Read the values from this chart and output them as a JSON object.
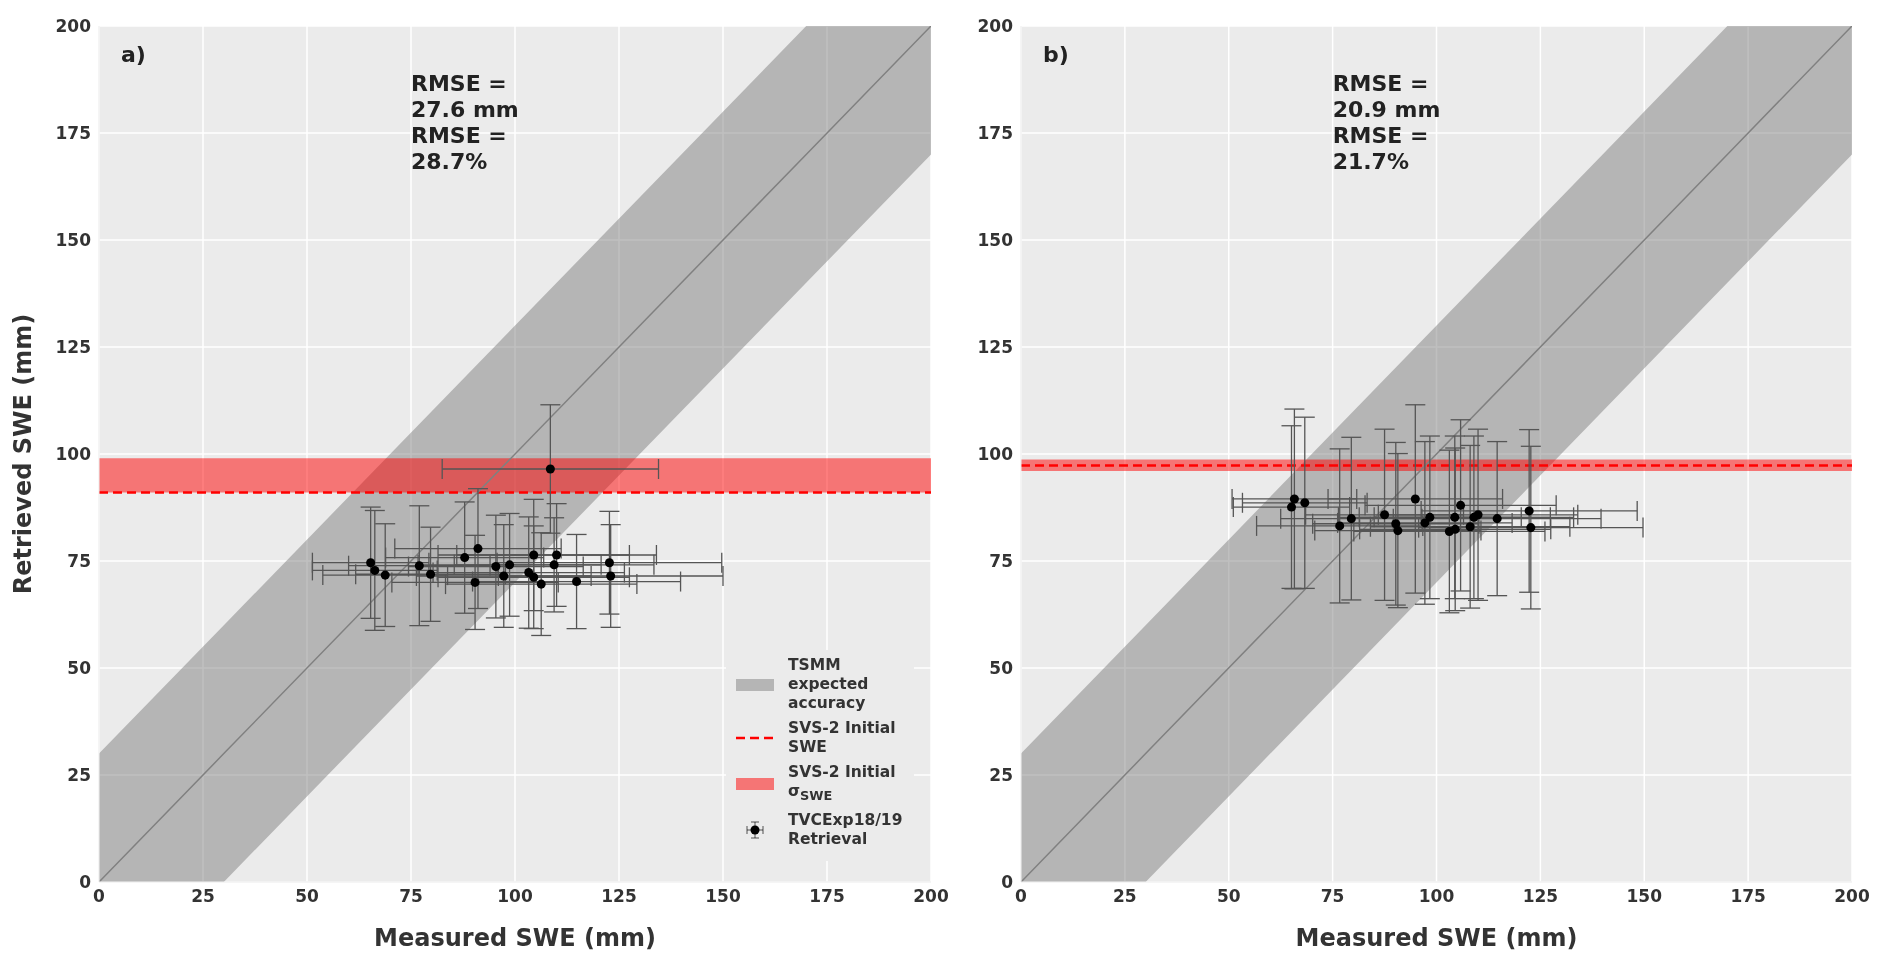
{
  "chart_data": [
    {
      "type": "scatter",
      "xlabel": "Measured SWE (mm)",
      "ylabel": "Retrieved SWE (mm)",
      "xlim": [
        0,
        200
      ],
      "ylim": [
        0,
        200
      ],
      "xticks": [
        0,
        25,
        50,
        75,
        100,
        125,
        150,
        175,
        200
      ],
      "yticks": [
        0,
        25,
        50,
        75,
        100,
        125,
        150,
        175,
        200
      ],
      "grid": true,
      "legend": "bottom right",
      "annotations": [
        "a)",
        "RMSE = 27.6 mm",
        "RMSE = 28.7%"
      ],
      "ref_lines": [
        {
          "axis": "y",
          "value": 91,
          "label": "SVS-2 Initial SWE",
          "color": "#ff0000",
          "line_style": "dashed"
        }
      ],
      "bands": [
        {
          "axis": "y",
          "from": 91,
          "to": 99,
          "label": "SVS-2 Initial σ$_{SWE}$",
          "color": "#ff0000"
        }
      ],
      "series": [
        {
          "type": "line",
          "name": "TSMM expected accuracy",
          "color": "#808080",
          "x": [
            0,
            30,
            170,
            200
          ],
          "values": [
            0,
            30,
            170,
            200
          ],
          "lower": [
            0,
            0,
            140,
            170
          ],
          "upper": [
            30,
            60,
            200,
            200
          ]
        },
        {
          "name": "TVCExp18/19 Retrieval",
          "marker": "circle",
          "color": "#000000",
          "x": [
            65.3,
            66.3,
            68.8,
            77.0,
            79.7,
            87.9,
            91.1,
            90.4,
            95.4,
            97.3,
            98.7,
            103.3,
            104.5,
            104.5,
            106.3,
            109.4,
            110.0,
            108.5,
            114.8,
            122.7,
            123.0
          ],
          "values": [
            74.6,
            72.8,
            71.7,
            73.9,
            71.9,
            75.8,
            77.9,
            70.0,
            73.7,
            71.5,
            74.1,
            72.3,
            71.2,
            76.4,
            69.6,
            74.1,
            76.4,
            96.5,
            70.2,
            74.6,
            71.5
          ],
          "errors": [
            13,
            14,
            12,
            14,
            11,
            13,
            14,
            11,
            12,
            12,
            12,
            13,
            12,
            13,
            12,
            11,
            12,
            15,
            11,
            12,
            12
          ],
          "xerrors": [
            14,
            15,
            15,
            17,
            18,
            19,
            20,
            20,
            21,
            21,
            22,
            23,
            23,
            23,
            23,
            24,
            24,
            26,
            25,
            27,
            27
          ]
        }
      ]
    },
    {
      "type": "scatter",
      "xlabel": "Measured SWE (mm)",
      "xlim": [
        0,
        200
      ],
      "ylim": [
        0,
        200
      ],
      "xticks": [
        0,
        25,
        50,
        75,
        100,
        125,
        150,
        175,
        200
      ],
      "yticks": [
        0,
        25,
        50,
        75,
        100,
        125,
        150,
        175,
        200
      ],
      "grid": true,
      "annotations": [
        "b)",
        "RMSE = 20.9 mm",
        "RMSE = 21.7%"
      ],
      "ref_lines": [
        {
          "axis": "y",
          "value": 97.3,
          "color": "#ff0000",
          "line_style": "dashed"
        }
      ],
      "bands": [
        {
          "axis": "y",
          "from": 96,
          "to": 98.7,
          "color": "#ff0000"
        }
      ],
      "series": [
        {
          "type": "line",
          "color": "#808080",
          "x": [
            0,
            30,
            170,
            200
          ],
          "values": [
            0,
            30,
            170,
            200
          ],
          "lower": [
            0,
            0,
            140,
            170
          ],
          "upper": [
            30,
            60,
            200,
            200
          ]
        },
        {
          "marker": "circle",
          "color": "#000000",
          "x": [
            65.8,
            65.1,
            68.3,
            76.7,
            79.5,
            87.5,
            90.2,
            90.7,
            94.9,
            97.2,
            98.4,
            103.1,
            104.4,
            104.5,
            105.8,
            108.1,
            109.0,
            110.0,
            114.6,
            122.3,
            122.7
          ],
          "values": [
            89.5,
            87.6,
            88.6,
            83.2,
            84.9,
            85.8,
            83.7,
            82.1,
            89.5,
            83.9,
            85.2,
            81.9,
            85.2,
            82.4,
            88.0,
            83.0,
            85.2,
            85.8,
            84.9,
            86.7,
            82.8
          ],
          "errors": [
            21,
            19,
            20,
            18,
            19,
            20,
            19,
            18,
            22,
            19,
            19,
            19,
            19,
            19,
            20,
            19,
            19,
            20,
            18,
            19,
            19
          ],
          "xerrors": [
            15,
            14,
            15,
            20,
            17,
            19,
            20,
            20,
            21,
            21,
            22,
            23,
            23,
            23,
            23,
            24,
            24,
            24,
            25,
            26,
            27
          ]
        }
      ]
    }
  ]
}
